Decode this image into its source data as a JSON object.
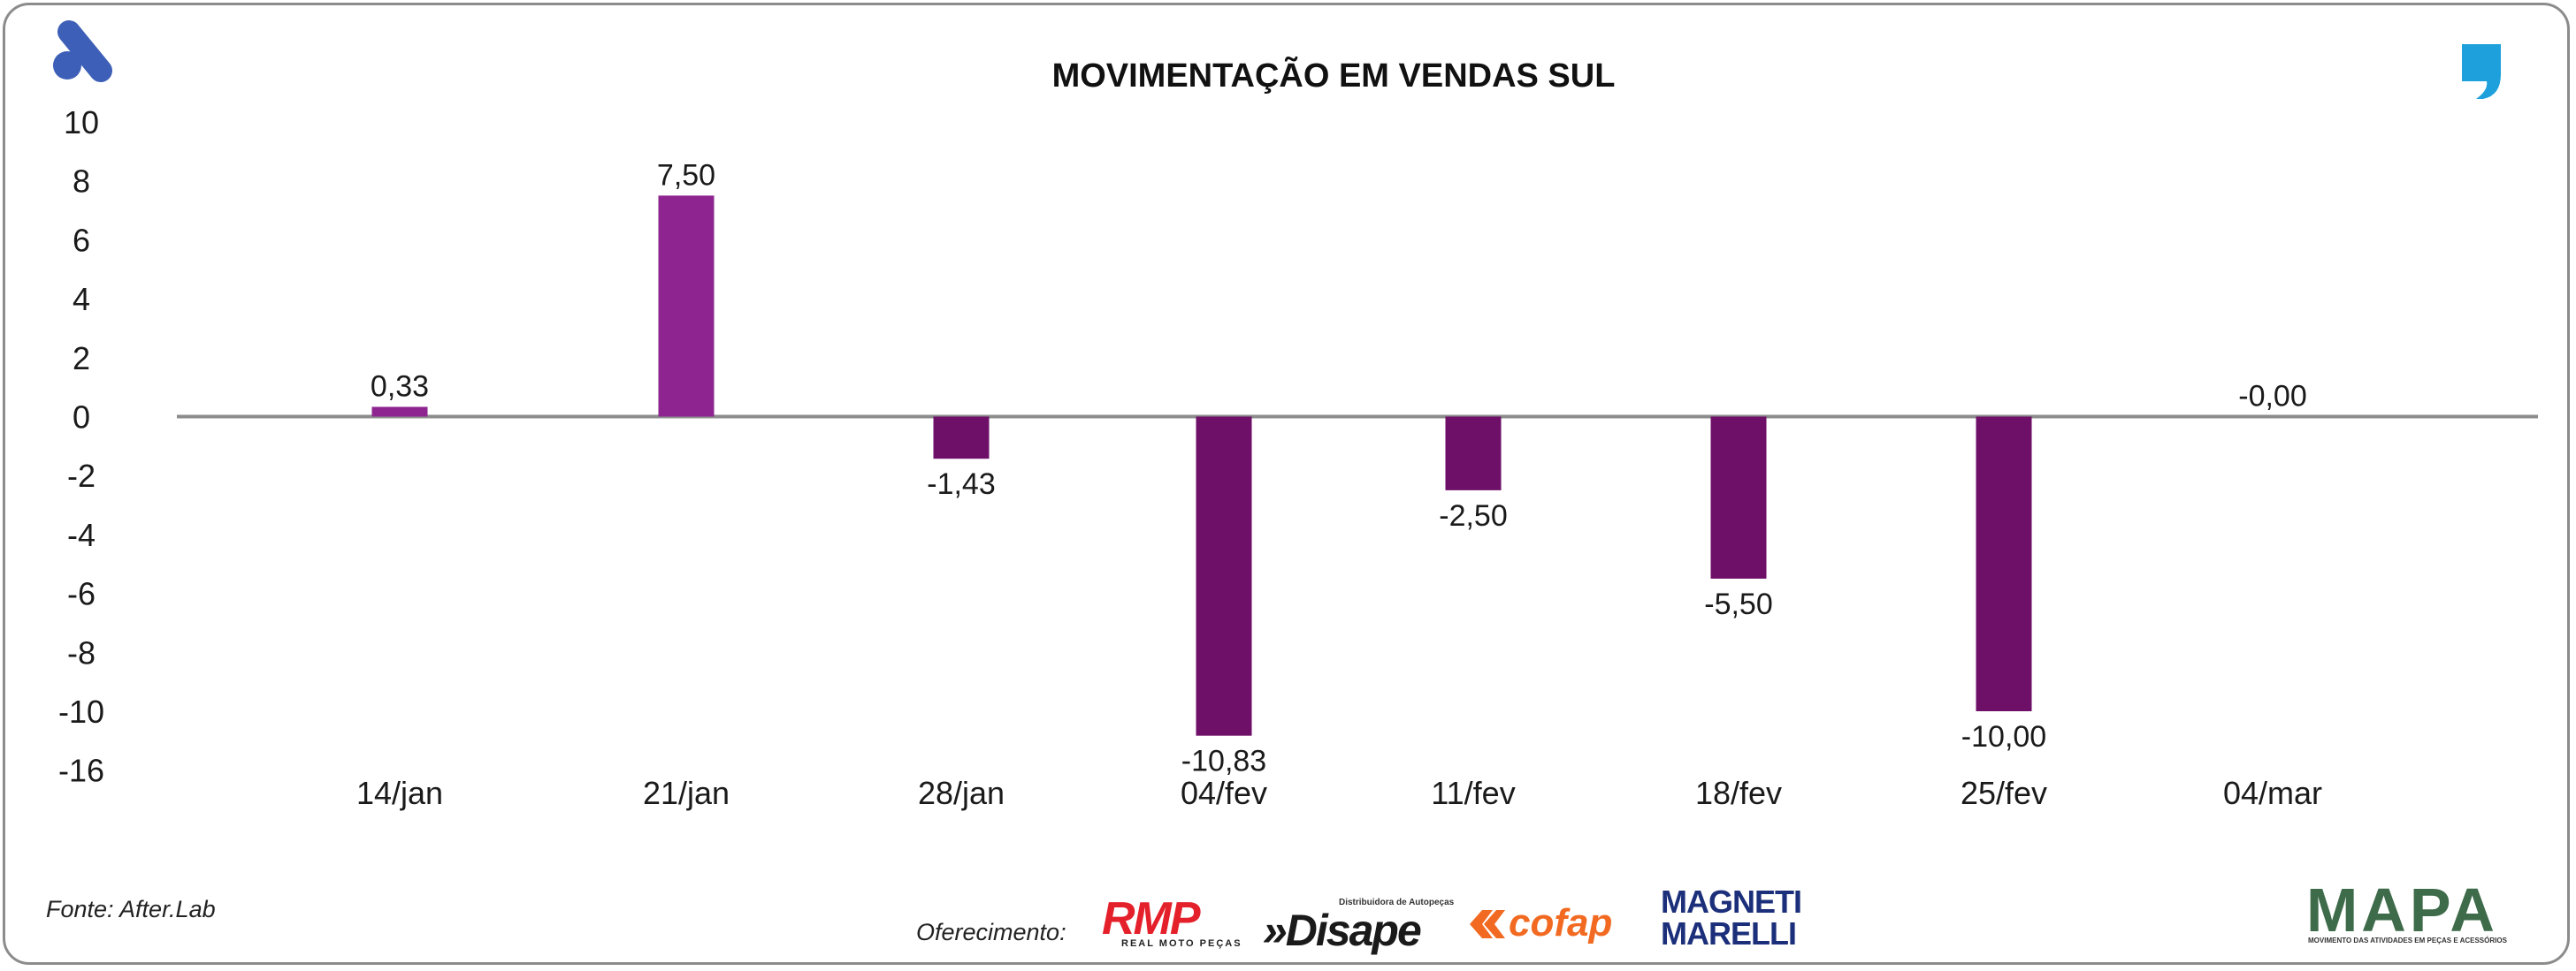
{
  "colors": {
    "positive_bar": "#8E2490",
    "negative_bar": "#6E0F68",
    "zero_line": "#8c8c8c",
    "brand_blue": "#3D5FB7",
    "quote_blue": "#1EA0DC",
    "rmp_red": "#E4202B",
    "cofap_orange": "#F26A21",
    "magneti_blue": "#1C2F7A",
    "mapa_green": "#3E6B4A"
  },
  "chart_data": {
    "type": "bar",
    "title": "MOVIMENTAÇÃO EM VENDAS SUL",
    "categories": [
      "14/jan",
      "21/jan",
      "28/jan",
      "04/fev",
      "11/fev",
      "18/fev",
      "25/fev",
      "04/mar"
    ],
    "values": [
      0.33,
      7.5,
      -1.43,
      -10.83,
      -2.5,
      -5.5,
      -10.0,
      -0.0
    ],
    "data_labels": [
      "0,33",
      "7,50",
      "-1,43",
      "-10,83",
      "-2,50",
      "-5,50",
      "-10,00",
      "-0,00"
    ],
    "y_ticks": [
      "10",
      "8",
      "6",
      "4",
      "2",
      "0",
      "-2",
      "-4",
      "-6",
      "-8",
      "-10",
      "-16"
    ],
    "xlabel": "",
    "ylabel": "",
    "grid": false,
    "legend": "none"
  },
  "footer": {
    "source": "Fonte: After.Lab",
    "sponsor_label": "Oferecimento:"
  },
  "logos": {
    "brand_icon": "after-lab-logo-icon",
    "quote_icon": "quote-mark-icon",
    "rmp": {
      "name": "RMP",
      "tagline": "REAL MOTO PEÇAS"
    },
    "disape": {
      "name": "»Disape",
      "tagline": "Distribuidora de Autopeças"
    },
    "cofap": {
      "name": "cofap"
    },
    "magneti": {
      "line1": "MAGNETI",
      "line2": "MARELLI"
    },
    "mapa": {
      "name": "MAPA",
      "tagline": "MOVIMENTO DAS ATIVIDADES EM PEÇAS E ACESSÓRIOS"
    }
  }
}
